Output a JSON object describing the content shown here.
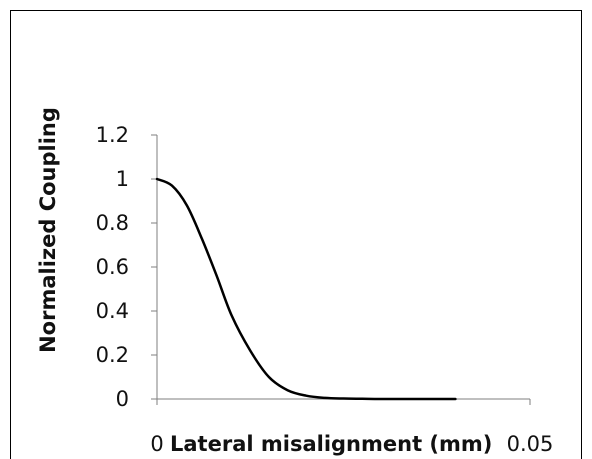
{
  "chart_data": {
    "type": "line",
    "title": "",
    "xlabel": "Lateral misalignment  (mm)",
    "ylabel": "Normalized Coupling",
    "xlim": [
      0,
      0.05
    ],
    "ylim": [
      0,
      1.2
    ],
    "x_ticks": [
      "0",
      "0.05"
    ],
    "y_ticks": [
      "0",
      "0.2",
      "0.4",
      "0.6",
      "0.8",
      "1",
      "1.2"
    ],
    "grid": false,
    "legend": "none",
    "series": [
      {
        "color": "#000000",
        "x": [
          0,
          0.002,
          0.004,
          0.006,
          0.008,
          0.01,
          0.0125,
          0.015,
          0.0175,
          0.02,
          0.0225,
          0.025,
          0.0275,
          0.03,
          0.035,
          0.04
        ],
        "y": [
          1.0,
          0.97,
          0.88,
          0.73,
          0.56,
          0.38,
          0.22,
          0.1,
          0.04,
          0.015,
          0.005,
          0.002,
          0.001,
          0.0,
          0.0,
          0.0
        ]
      }
    ]
  }
}
